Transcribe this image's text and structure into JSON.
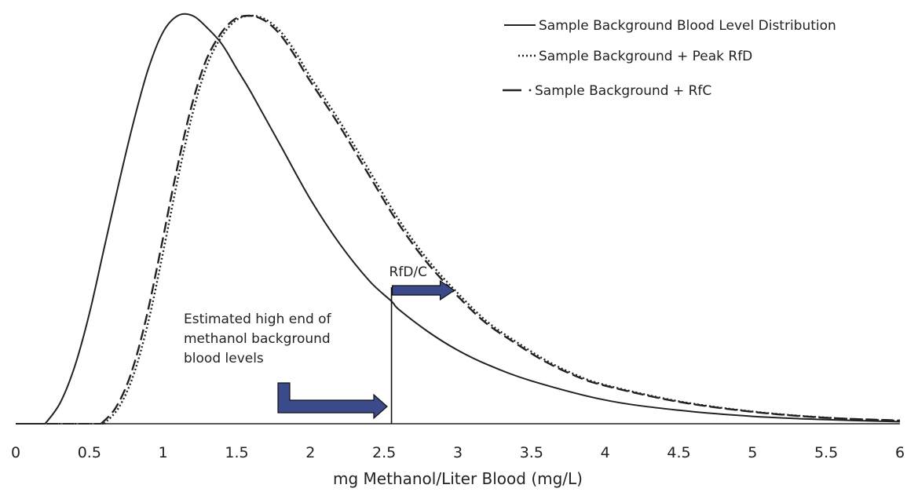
{
  "chart_data": {
    "type": "line",
    "title": "",
    "xlabel": "mg Methanol/Liter Blood (mg/L)",
    "ylabel": "",
    "xlim": [
      0,
      6
    ],
    "ylim": [
      0,
      1
    ],
    "grid": false,
    "legend_position": "top-right",
    "x_ticks": [
      "0",
      "0.5",
      "1",
      "1.5",
      "2",
      "2.5",
      "3",
      "3.5",
      "4",
      "4.5",
      "5",
      "5.5",
      "6"
    ],
    "series": [
      {
        "name": "Sample Background Blood Level Distribution",
        "style": "solid",
        "color": "#222222",
        "x": [
          0.2,
          0.3,
          0.4,
          0.5,
          0.6,
          0.7,
          0.8,
          0.9,
          1.0,
          1.1,
          1.2,
          1.3,
          1.4,
          1.5,
          1.6,
          1.8,
          2.0,
          2.2,
          2.4,
          2.55,
          2.6,
          2.8,
          3.0,
          3.2,
          3.5,
          4.0,
          4.5,
          5.0,
          5.5,
          6.0
        ],
        "y": [
          0.0,
          0.05,
          0.14,
          0.27,
          0.43,
          0.59,
          0.74,
          0.87,
          0.96,
          1.0,
          1.0,
          0.97,
          0.93,
          0.87,
          0.81,
          0.68,
          0.55,
          0.44,
          0.35,
          0.3,
          0.28,
          0.225,
          0.18,
          0.145,
          0.105,
          0.058,
          0.033,
          0.018,
          0.01,
          0.005
        ]
      },
      {
        "name": "Sample Background + Peak RfD",
        "style": "dotted",
        "color": "#222222",
        "x": [
          0.6,
          0.7,
          0.8,
          0.9,
          1.0,
          1.1,
          1.2,
          1.3,
          1.4,
          1.5,
          1.6,
          1.7,
          1.8,
          1.9,
          2.0,
          2.2,
          2.4,
          2.6,
          2.8,
          3.0,
          3.2,
          3.4,
          3.6,
          3.8,
          4.0,
          4.5,
          5.0,
          5.5,
          6.0
        ],
        "y": [
          0.0,
          0.04,
          0.12,
          0.25,
          0.42,
          0.6,
          0.76,
          0.88,
          0.95,
          0.99,
          1.0,
          0.99,
          0.96,
          0.91,
          0.85,
          0.74,
          0.62,
          0.5,
          0.4,
          0.32,
          0.25,
          0.2,
          0.155,
          0.12,
          0.095,
          0.055,
          0.03,
          0.015,
          0.007
        ]
      },
      {
        "name": "Sample Background + RfC",
        "style": "dashed",
        "color": "#222222",
        "x": [
          0.58,
          0.68,
          0.78,
          0.88,
          0.98,
          1.08,
          1.18,
          1.28,
          1.38,
          1.48,
          1.58,
          1.68,
          1.78,
          1.88,
          1.98,
          2.18,
          2.38,
          2.58,
          2.78,
          2.98,
          3.18,
          3.38,
          3.58,
          3.78,
          3.98,
          4.48,
          4.98,
          5.48,
          6.0
        ],
        "y": [
          0.0,
          0.04,
          0.12,
          0.25,
          0.42,
          0.6,
          0.76,
          0.88,
          0.95,
          0.99,
          1.0,
          0.99,
          0.96,
          0.91,
          0.85,
          0.74,
          0.62,
          0.5,
          0.4,
          0.32,
          0.25,
          0.2,
          0.155,
          0.12,
          0.095,
          0.055,
          0.03,
          0.015,
          0.008
        ]
      }
    ],
    "reference_line": {
      "x": 2.55,
      "y_top": 0.34
    },
    "annotations": [
      {
        "id": "rfdc",
        "text": "RfD/C"
      },
      {
        "id": "high_end",
        "lines": [
          "Estimated high end of",
          "methanol background",
          "blood levels"
        ]
      }
    ],
    "arrow_color": "#3a4a8a"
  }
}
